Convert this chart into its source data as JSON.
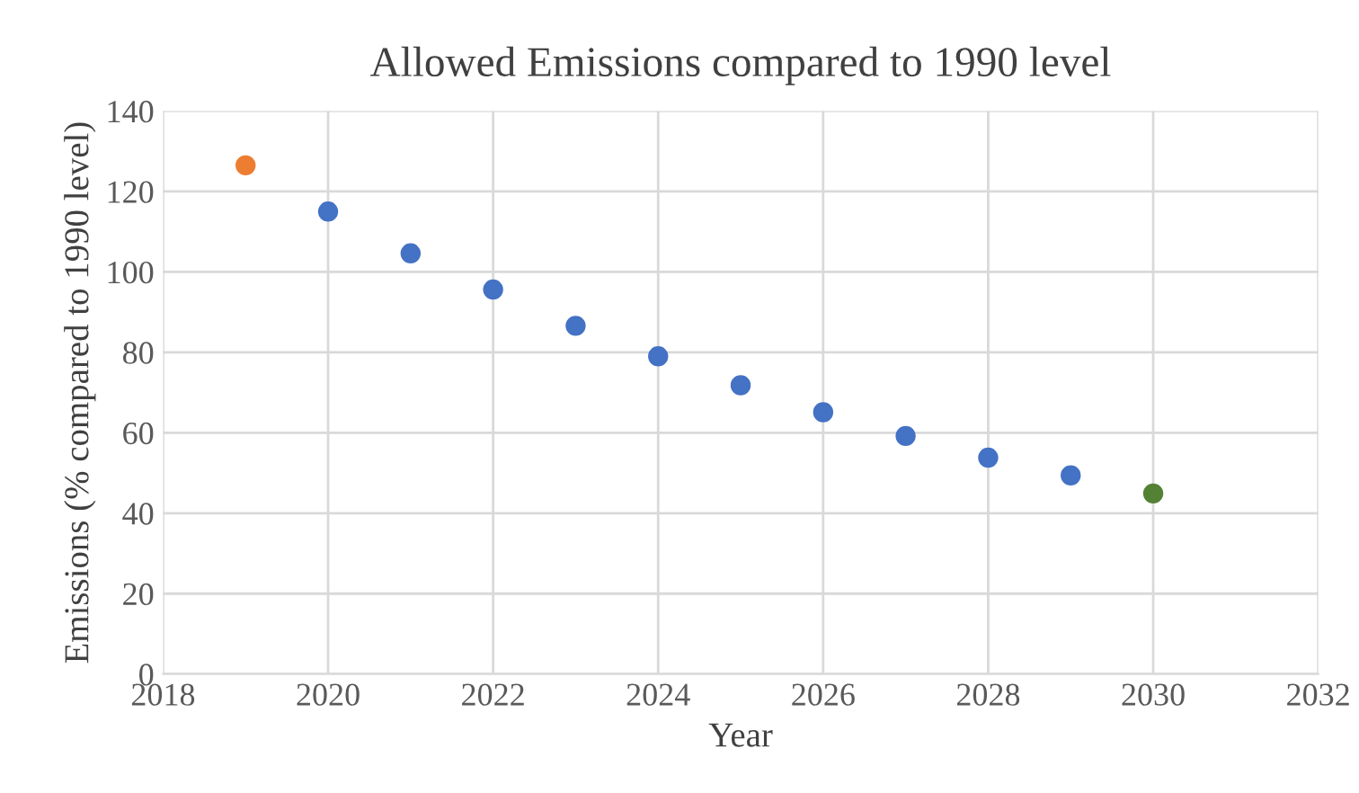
{
  "chart_data": {
    "type": "scatter",
    "title": "Allowed Emissions compared to 1990 level",
    "xlabel": "Year",
    "ylabel": "Emissions (% compared to 1990 level)",
    "series": [
      {
        "color": "#ed7d31",
        "x": [
          2019
        ],
        "values": [
          126.5
        ]
      },
      {
        "color": "#4472c4",
        "x": [
          2020,
          2021,
          2022,
          2023,
          2024,
          2025,
          2026,
          2027,
          2028,
          2029
        ],
        "values": [
          115,
          104.6,
          95.6,
          86.6,
          79,
          71.8,
          65.1,
          59.2,
          53.8,
          49.4
        ]
      },
      {
        "color": "#548235",
        "x": [
          2030
        ],
        "values": [
          44.9
        ]
      }
    ],
    "xlim": [
      2018,
      2032
    ],
    "xticks": [
      2018,
      2020,
      2022,
      2024,
      2026,
      2028,
      2030,
      2032
    ],
    "ylim": [
      0,
      140
    ],
    "yticks": [
      0,
      20,
      40,
      60,
      80,
      100,
      120,
      140
    ],
    "grid": true,
    "marker": "circle"
  }
}
